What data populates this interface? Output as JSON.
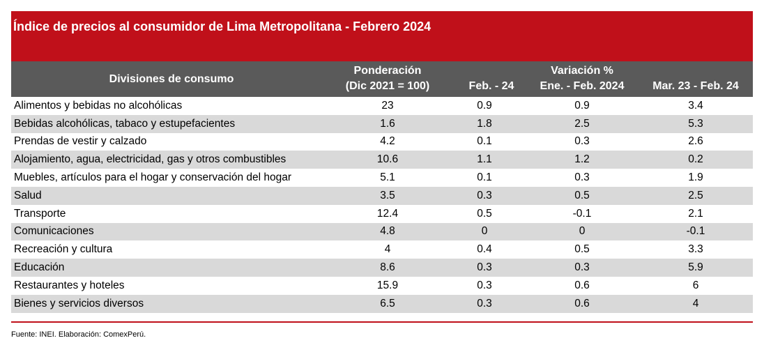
{
  "title": "Índice de precios al consumidor de Lima Metropolitana - Febrero 2024",
  "header": {
    "divisions": "Divisiones de consumo",
    "weight_line1": "Ponderación",
    "weight_line2": "(Dic 2021 = 100)",
    "variation_group": "Variación %",
    "col_feb": "Feb. - 24",
    "col_ene_feb": "Ene. - Feb. 2024",
    "col_mar_feb": "Mar. 23 - Feb. 24"
  },
  "chart_data": {
    "type": "table",
    "title": "Índice de precios al consumidor de Lima Metropolitana - Febrero 2024",
    "columns": [
      "Divisiones de consumo",
      "Ponderación (Dic 2021 = 100)",
      "Feb. - 24",
      "Ene. - Feb. 2024",
      "Mar. 23 - Feb. 24"
    ],
    "rows": [
      [
        "Alimentos y bebidas no alcohólicas",
        "23",
        "0.9",
        "0.9",
        "3.4"
      ],
      [
        "Bebidas alcohólicas, tabaco y estupefacientes",
        "1.6",
        "1.8",
        "2.5",
        "5.3"
      ],
      [
        "Prendas de vestir y calzado",
        "4.2",
        "0.1",
        "0.3",
        "2.6"
      ],
      [
        "Alojamiento, agua, electricidad, gas y otros combustibles",
        "10.6",
        "1.1",
        "1.2",
        "0.2"
      ],
      [
        "Muebles, artículos para el hogar y conservación del hogar",
        "5.1",
        "0.1",
        "0.3",
        "1.9"
      ],
      [
        "Salud",
        "3.5",
        "0.3",
        "0.5",
        "2.5"
      ],
      [
        "Transporte",
        "12.4",
        "0.5",
        "-0.1",
        "2.1"
      ],
      [
        "Comunicaciones",
        "4.8",
        "0",
        "0",
        "-0.1"
      ],
      [
        "Recreación y cultura",
        "4",
        "0.4",
        "0.5",
        "3.3"
      ],
      [
        "Educación",
        "8.6",
        "0.3",
        "0.3",
        "5.9"
      ],
      [
        "Restaurantes y hoteles",
        "15.9",
        "0.3",
        "0.6",
        "6"
      ],
      [
        "Bienes y servicios diversos",
        "6.5",
        "0.3",
        "0.6",
        "4"
      ]
    ]
  },
  "source": "Fuente: INEI. Elaboración: ComexPerú.",
  "colors": {
    "title_bg": "#c0101a",
    "header_bg": "#5a5a5a",
    "stripe": "#d9d9d9",
    "rule": "#c0101a"
  }
}
